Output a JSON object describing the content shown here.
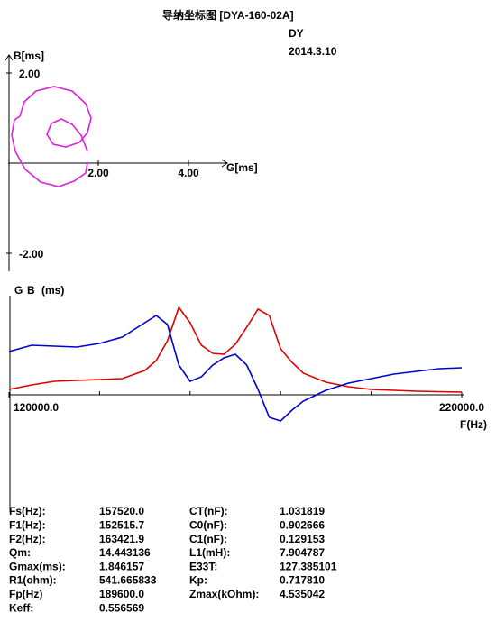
{
  "header": {
    "title": "导纳坐标图  [DYA-160-02A]",
    "name": "DY",
    "date": "2014.3.10"
  },
  "chart_data": [
    {
      "type": "line",
      "xlabel": "G[ms]",
      "ylabel": "B[ms]",
      "color": "#e020e0",
      "x": [
        1.76,
        1.72,
        1.46,
        1.12,
        0.72,
        0.38,
        0.16,
        0.08,
        0.14,
        0.26,
        0.36,
        0.62,
        1.02,
        1.42,
        1.72,
        1.84,
        1.76,
        1.58,
        1.28,
        1.0,
        0.86,
        0.96,
        1.18,
        1.42,
        1.62,
        1.76
      ],
      "values": [
        0.02,
        -0.22,
        -0.4,
        -0.52,
        -0.42,
        -0.14,
        0.26,
        0.62,
        0.96,
        1.04,
        1.36,
        1.6,
        1.7,
        1.6,
        1.32,
        1.0,
        0.68,
        0.46,
        0.36,
        0.42,
        0.64,
        0.88,
        0.98,
        0.86,
        0.62,
        0.26
      ],
      "xlim": [
        0,
        4.8
      ],
      "ylim": [
        -2.4,
        2.4
      ],
      "xticks": [
        {
          "value": 2,
          "label": "2.00"
        },
        {
          "value": 4,
          "label": "4.00"
        }
      ],
      "yticks": [
        {
          "value": 2,
          "label": "2.00"
        },
        {
          "value": -2,
          "label": "-2.00"
        }
      ]
    },
    {
      "type": "line",
      "xlabel": "F(Hz)",
      "ylabel": "(ms)",
      "x": [
        120000,
        125000,
        130000,
        135000,
        140000,
        145000,
        150000,
        152500,
        155000,
        157500,
        160000,
        162500,
        165000,
        167500,
        170000,
        172500,
        175000,
        177500,
        180000,
        182500,
        185000,
        190000,
        195000,
        200000,
        205000,
        210000,
        215000,
        220000
      ],
      "series": [
        {
          "name": "G",
          "color": "#e00000",
          "values": [
            0.12,
            0.22,
            0.3,
            0.32,
            0.34,
            0.36,
            0.54,
            0.76,
            1.2,
            1.94,
            1.6,
            1.1,
            0.92,
            0.9,
            1.12,
            1.5,
            1.9,
            1.76,
            1.02,
            0.72,
            0.48,
            0.28,
            0.18,
            0.12,
            0.1,
            0.08,
            0.07,
            0.06
          ]
        },
        {
          "name": "B",
          "color": "#0000d0",
          "values": [
            0.96,
            1.1,
            1.08,
            1.06,
            1.14,
            1.28,
            1.6,
            1.76,
            1.56,
            0.66,
            0.3,
            0.4,
            0.66,
            0.82,
            0.9,
            0.66,
            0.12,
            -0.5,
            -0.58,
            -0.34,
            -0.14,
            0.1,
            0.26,
            0.36,
            0.46,
            0.52,
            0.58,
            0.6
          ]
        }
      ],
      "xlim": [
        120000,
        220000
      ],
      "ylim": [
        -2.6,
        2.2
      ],
      "xticks": [
        {
          "value": 120000,
          "label": "120000.0"
        },
        {
          "value": 220000,
          "label": "220000.0"
        }
      ],
      "xminorticks": [
        140000,
        160000,
        180000,
        200000
      ]
    }
  ],
  "table": {
    "rows": [
      [
        "Fs(Hz):",
        "157520.0",
        "CT(nF):",
        "1.031819"
      ],
      [
        "F1(Hz):",
        "152515.7",
        "C0(nF):",
        "0.902666"
      ],
      [
        "F2(Hz):",
        "163421.9",
        "C1(nF):",
        "0.129153"
      ],
      [
        "Qm:",
        "14.443136",
        "L1(mH):",
        "7.904787"
      ],
      [
        "Gmax(ms):",
        "1.846157",
        "E33T:",
        "127.385101"
      ],
      [
        "R1(ohm):",
        "541.665833",
        "Kp:",
        "0.717810"
      ],
      [
        "Fp(Hz)",
        "189600.0",
        "Zmax(kOhm):",
        "4.535042"
      ],
      [
        "Keff:",
        "0.556569"
      ]
    ]
  }
}
